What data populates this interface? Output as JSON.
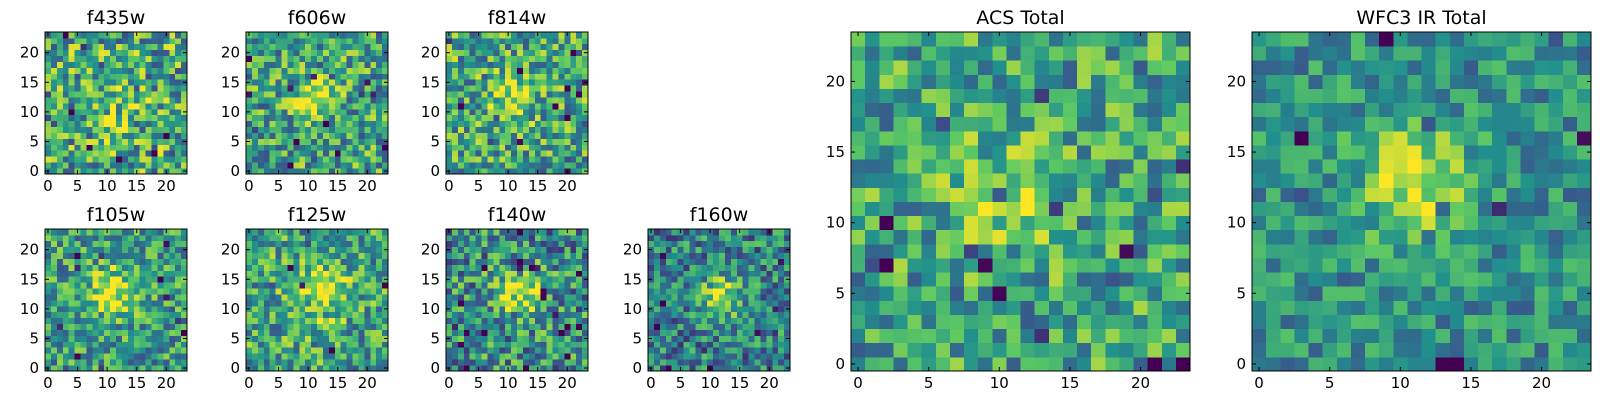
{
  "colormap": [
    "#440154",
    "#3b528b",
    "#21908d",
    "#5dc863",
    "#fde725"
  ],
  "chart_data": [
    {
      "type": "heatmap",
      "title": "f435w",
      "grid": 24,
      "xticks": [
        0,
        5,
        10,
        15,
        20
      ],
      "yticks": [
        0,
        5,
        10,
        15,
        20
      ],
      "peak": [
        11,
        11
      ],
      "peak_amp": 0.12,
      "peak_sigma": 3.0,
      "base": 0.6,
      "noise": 0.38,
      "seed": 11
    },
    {
      "type": "heatmap",
      "title": "f606w",
      "grid": 24,
      "xticks": [
        0,
        5,
        10,
        15,
        20
      ],
      "yticks": [
        0,
        5,
        10,
        15,
        20
      ],
      "peak": [
        11,
        12
      ],
      "peak_amp": 0.35,
      "peak_sigma": 2.5,
      "base": 0.58,
      "noise": 0.34,
      "seed": 23
    },
    {
      "type": "heatmap",
      "title": "f814w",
      "grid": 24,
      "xticks": [
        0,
        5,
        10,
        15,
        20
      ],
      "yticks": [
        0,
        5,
        10,
        15,
        20
      ],
      "peak": [
        11,
        12
      ],
      "peak_amp": 0.28,
      "peak_sigma": 2.5,
      "base": 0.6,
      "noise": 0.34,
      "seed": 37
    },
    {
      "type": "heatmap",
      "title": "f105w",
      "grid": 24,
      "xticks": [
        0,
        5,
        10,
        15,
        20
      ],
      "yticks": [
        0,
        5,
        10,
        15,
        20
      ],
      "peak": [
        11,
        13
      ],
      "peak_amp": 0.38,
      "peak_sigma": 3.0,
      "base": 0.55,
      "noise": 0.3,
      "seed": 41
    },
    {
      "type": "heatmap",
      "title": "f125w",
      "grid": 24,
      "xticks": [
        0,
        5,
        10,
        15,
        20
      ],
      "yticks": [
        0,
        5,
        10,
        15,
        20
      ],
      "peak": [
        12,
        13
      ],
      "peak_amp": 0.35,
      "peak_sigma": 3.5,
      "base": 0.58,
      "noise": 0.32,
      "seed": 53
    },
    {
      "type": "heatmap",
      "title": "f140w",
      "grid": 24,
      "xticks": [
        0,
        5,
        10,
        15,
        20
      ],
      "yticks": [
        0,
        5,
        10,
        15,
        20
      ],
      "peak": [
        12,
        12
      ],
      "peak_amp": 0.38,
      "peak_sigma": 2.8,
      "base": 0.5,
      "noise": 0.34,
      "seed": 67
    },
    {
      "type": "heatmap",
      "title": "f160w",
      "grid": 24,
      "xticks": [
        0,
        5,
        10,
        15,
        20
      ],
      "yticks": [
        0,
        5,
        10,
        15,
        20
      ],
      "peak": [
        12,
        12
      ],
      "peak_amp": 0.42,
      "peak_sigma": 2.5,
      "base": 0.45,
      "noise": 0.3,
      "seed": 79
    },
    {
      "type": "heatmap",
      "title": "ACS Total",
      "grid": 24,
      "xticks": [
        0,
        5,
        10,
        15,
        20
      ],
      "yticks": [
        0,
        5,
        10,
        15,
        20
      ],
      "peak": [
        11,
        12
      ],
      "peak_amp": 0.32,
      "peak_sigma": 2.6,
      "base": 0.58,
      "noise": 0.3,
      "seed": 83
    },
    {
      "type": "heatmap",
      "title": "WFC3 IR Total",
      "grid": 24,
      "xticks": [
        0,
        5,
        10,
        15,
        20
      ],
      "yticks": [
        0,
        5,
        10,
        15,
        20
      ],
      "peak": [
        11,
        13
      ],
      "peak_amp": 0.42,
      "peak_sigma": 2.8,
      "base": 0.5,
      "noise": 0.22,
      "seed": 97
    }
  ]
}
